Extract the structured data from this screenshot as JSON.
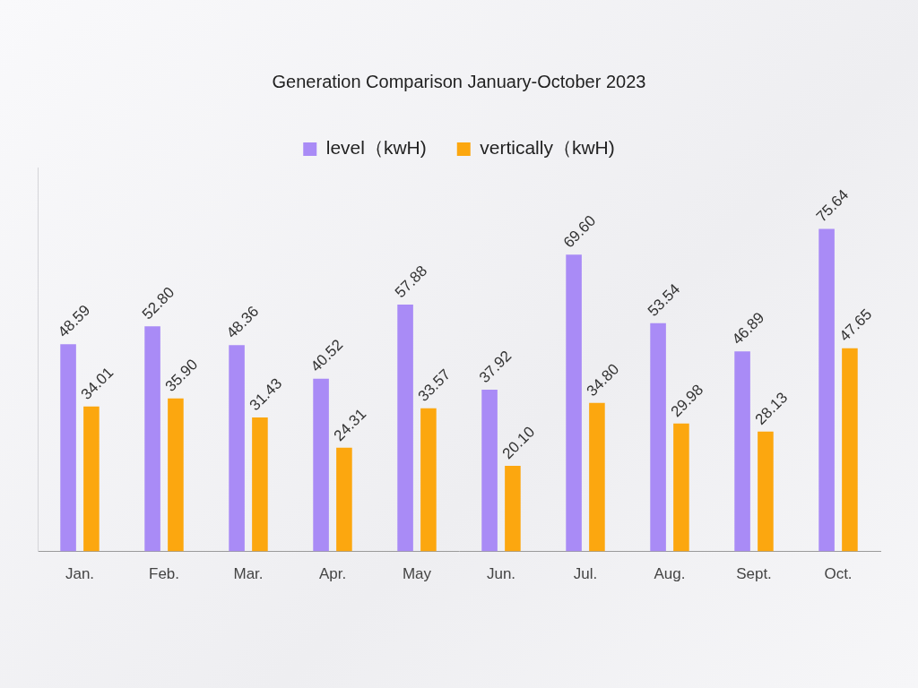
{
  "chart_data": {
    "type": "bar",
    "title": "Generation Comparison January-October 2023",
    "categories": [
      "Jan.",
      "Feb.",
      "Mar.",
      "Apr.",
      "May",
      "Jun.",
      "Jul.",
      "Aug.",
      "Sept.",
      "Oct."
    ],
    "series": [
      {
        "name": "level（kwH)",
        "color": "#a98bf6",
        "values": [
          48.59,
          52.8,
          48.36,
          40.52,
          57.88,
          37.92,
          69.6,
          53.54,
          46.89,
          75.64
        ],
        "value_labels": [
          "48.59",
          "52.80",
          "48.36",
          "40.52",
          "57.88",
          "37.92",
          "69.60",
          "53.54",
          "46.89",
          "75.64"
        ]
      },
      {
        "name": "vertically（kwH)",
        "color": "#fca70f",
        "values": [
          34.01,
          35.9,
          31.43,
          24.31,
          33.57,
          20.1,
          34.8,
          29.98,
          28.13,
          47.65
        ],
        "value_labels": [
          "34.01",
          "35.90",
          "31.43",
          "24.31",
          "33.57",
          "20.10",
          "34.80",
          "29.98",
          "28.13",
          "47.65"
        ]
      }
    ],
    "ylim": [
      0,
      90
    ],
    "grid": false,
    "legend": "top",
    "data_labels": true,
    "tick_labels": "x"
  }
}
